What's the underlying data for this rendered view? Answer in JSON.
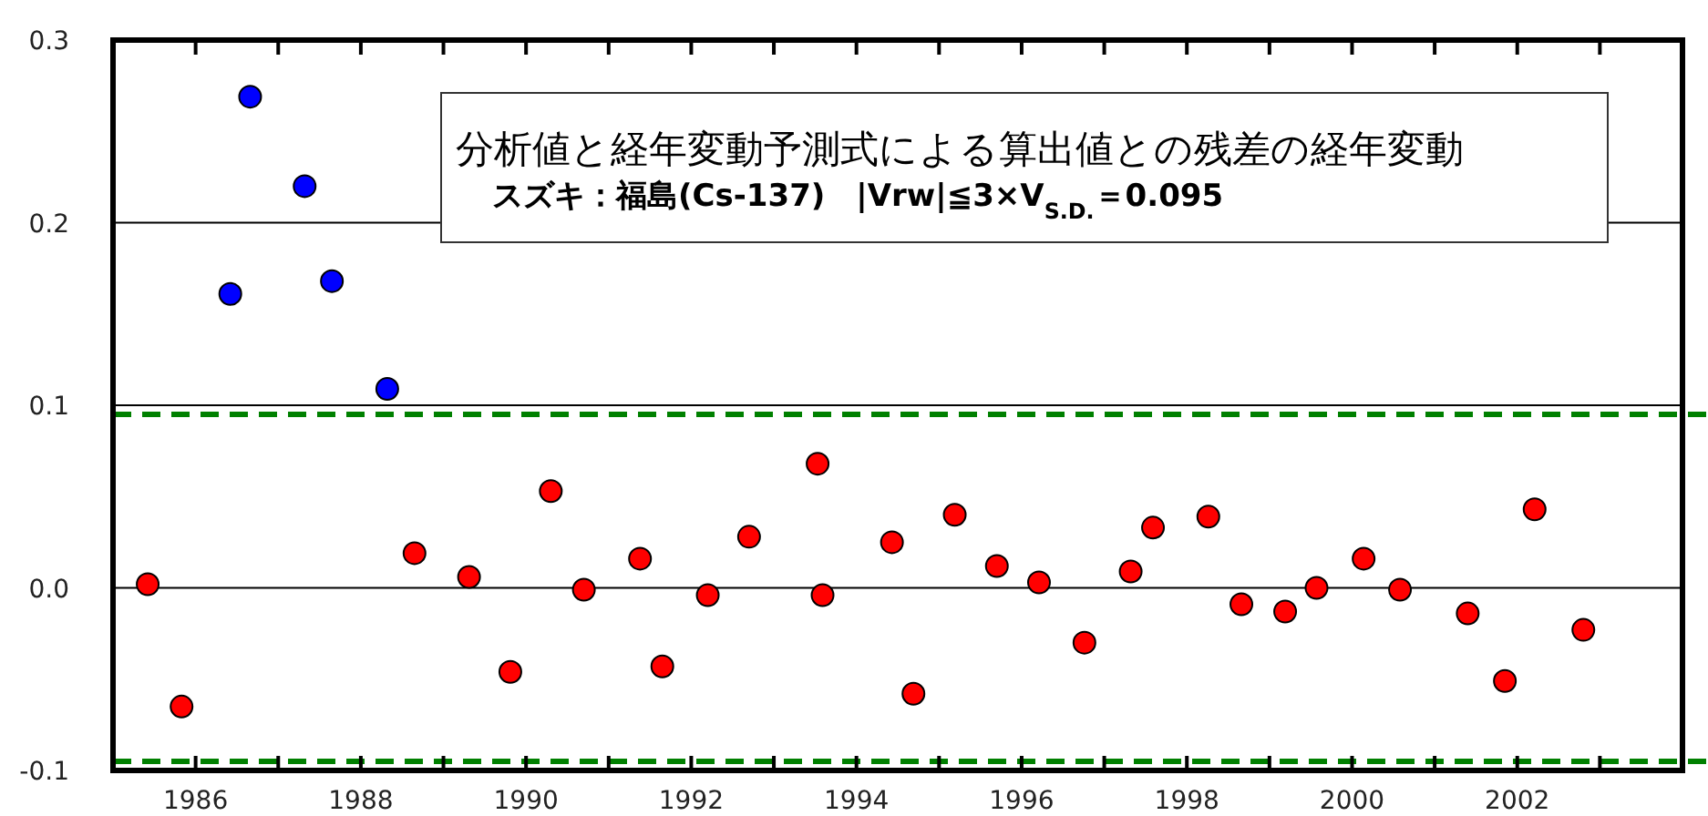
{
  "chart_data": {
    "type": "scatter",
    "title": "分析値と経年変動予測式による算出値との残差の経年変動",
    "subtitle": "スズキ：福島(Cs-137)　|Vrw|≦3×V$_{S.D.}$＝0.095",
    "xlim": [
      1985,
      2004
    ],
    "xticks": [
      1986,
      {
        "value": 1987,
        "label": null
      },
      1988,
      {
        "value": 1989,
        "label": null
      },
      1990,
      {
        "value": 1991,
        "label": null
      },
      1992,
      {
        "value": 1993,
        "label": null
      },
      1994,
      {
        "value": 1995,
        "label": null
      },
      1996,
      {
        "value": 1997,
        "label": null
      },
      1998,
      {
        "value": 1999,
        "label": null
      },
      2000,
      {
        "value": 2001,
        "label": null
      },
      2002,
      {
        "value": 2003,
        "label": null
      }
    ],
    "ylim": [
      -0.1,
      0.3
    ],
    "yticks": [
      -0.1,
      {
        "value": 0,
        "label": "0.0"
      },
      0.1,
      0.2,
      0.3
    ],
    "grid": "y",
    "marker": "circle",
    "ref_lines": [
      {
        "axis": "y",
        "value": 0.095,
        "color": "#008000",
        "line_style": "dashed"
      },
      {
        "axis": "y",
        "value": -0.095,
        "color": "#008000",
        "line_style": "dashed"
      }
    ],
    "series": [
      {
        "color": "#0000ff",
        "x": [
          1986.42,
          1986.66,
          1987.32,
          1987.65,
          1988.32
        ],
        "values": [
          0.161,
          0.269,
          0.22,
          0.168,
          0.109
        ]
      },
      {
        "color": "#ff0000",
        "x": [
          1985.42,
          1985.83,
          1988.65,
          1989.31,
          1989.81,
          1990.3,
          1990.7,
          1991.38,
          1991.65,
          1992.2,
          1992.7,
          1993.53,
          1993.59,
          1994.43,
          1994.69,
          1995.19,
          1995.7,
          1996.21,
          1996.76,
          1997.32,
          1997.59,
          1998.26,
          1998.66,
          1999.19,
          1999.57,
          2000.14,
          2000.58,
          2001.4,
          2001.85,
          2002.21,
          2002.8
        ],
        "values": [
          0.002,
          -0.065,
          0.019,
          0.006,
          -0.046,
          0.053,
          -0.001,
          0.016,
          -0.043,
          -0.004,
          0.028,
          0.068,
          -0.004,
          0.025,
          -0.058,
          0.04,
          0.012,
          0.003,
          -0.03,
          0.009,
          0.033,
          0.039,
          -0.009,
          -0.013,
          0.0,
          0.016,
          -0.001,
          -0.014,
          -0.051,
          0.043,
          -0.023
        ]
      }
    ]
  }
}
